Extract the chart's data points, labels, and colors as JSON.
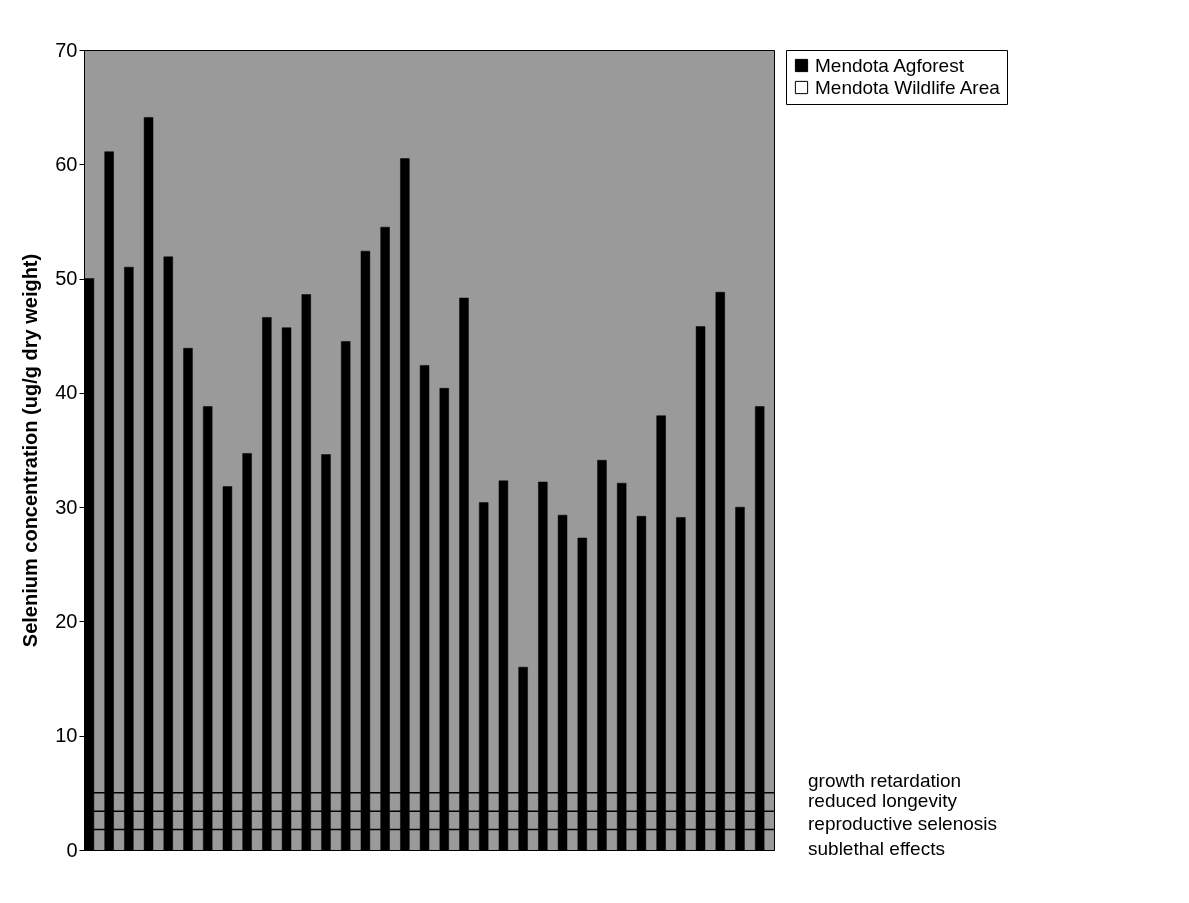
{
  "chart_data": {
    "type": "bar",
    "ylabel": "Selenium concentration (ug/g dry weight)",
    "categories": [
      null,
      null,
      null,
      null,
      null,
      null,
      null,
      null,
      null,
      null,
      null,
      null,
      null,
      null,
      null,
      null,
      null,
      null,
      null,
      null,
      null,
      null,
      null,
      null,
      null,
      null,
      null,
      null,
      null,
      null,
      null,
      null,
      null,
      null,
      null
    ],
    "series": [
      {
        "name": "Mendota Agforest",
        "color": "#000000",
        "values": [
          50.0,
          61.1,
          51.0,
          64.1,
          51.9,
          43.9,
          38.8,
          31.8,
          34.7,
          46.6,
          45.7,
          48.6,
          34.6,
          44.5,
          52.4,
          54.5,
          60.5,
          42.4,
          40.4,
          48.3,
          30.4,
          32.3,
          16.0,
          32.2,
          29.3,
          27.3,
          34.1,
          32.1,
          29.2,
          38.0,
          29.1,
          45.8,
          48.8,
          30.0,
          38.8
        ]
      },
      {
        "name": "Mendota Wildlife Area",
        "color": "#ffffff",
        "values": [
          null,
          null,
          null,
          null,
          null,
          null,
          null,
          null,
          null,
          null,
          null,
          null,
          null,
          null,
          null,
          null,
          null,
          null,
          null,
          null,
          null,
          null,
          null,
          null,
          null,
          null,
          null,
          null,
          null,
          null,
          null,
          null,
          null,
          null,
          null
        ]
      }
    ],
    "ylim": [
      0,
      70
    ],
    "yticks": [
      0,
      10,
      20,
      30,
      40,
      50,
      60,
      70
    ],
    "ref_lines": [
      {
        "axis": "y",
        "value": 5,
        "label": "growth retardation",
        "color": "#000000"
      },
      {
        "axis": "y",
        "value": 3.4,
        "label": "reduced longevity",
        "color": "#000000"
      },
      {
        "axis": "y",
        "value": 1.8,
        "label": "sublethal effects",
        "color": "#000000"
      }
    ],
    "annotations": [
      "reproductive selenosis"
    ],
    "grid": false,
    "legend": "right"
  }
}
